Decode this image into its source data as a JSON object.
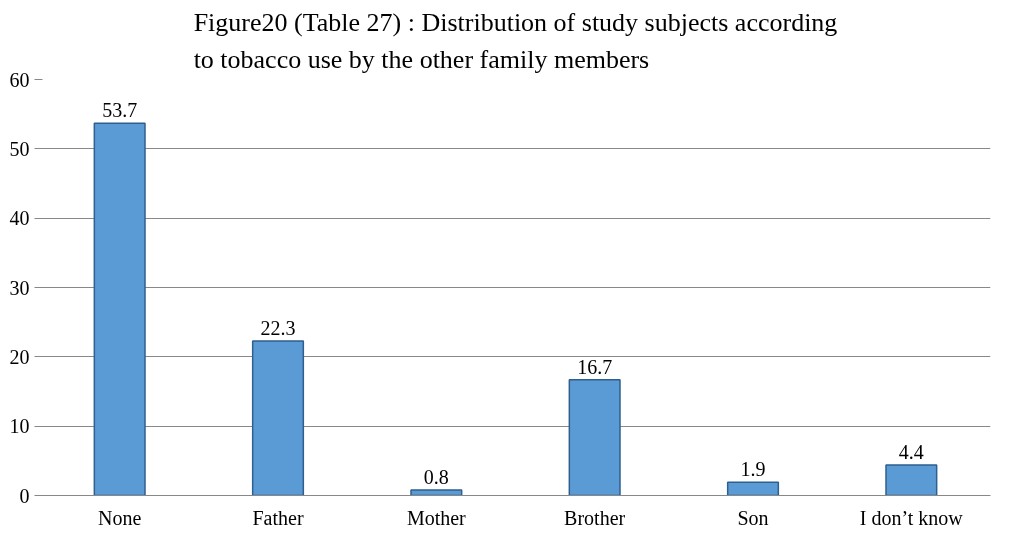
{
  "chart_data": {
    "type": "bar",
    "title": "Figure20 (Table 27) : Distribution of study subjects according to tobacco use by the other family members",
    "categories": [
      "None",
      "Father",
      "Mother",
      "Brother",
      "Son",
      "I don’t know"
    ],
    "values": [
      53.7,
      22.3,
      0.8,
      16.7,
      1.9,
      4.4
    ],
    "color": "#5b9bd5",
    "ylim": [
      0,
      60
    ],
    "yticks": [
      0,
      10,
      20,
      30,
      40,
      50,
      60
    ],
    "grid": "y",
    "data_labels": true
  }
}
